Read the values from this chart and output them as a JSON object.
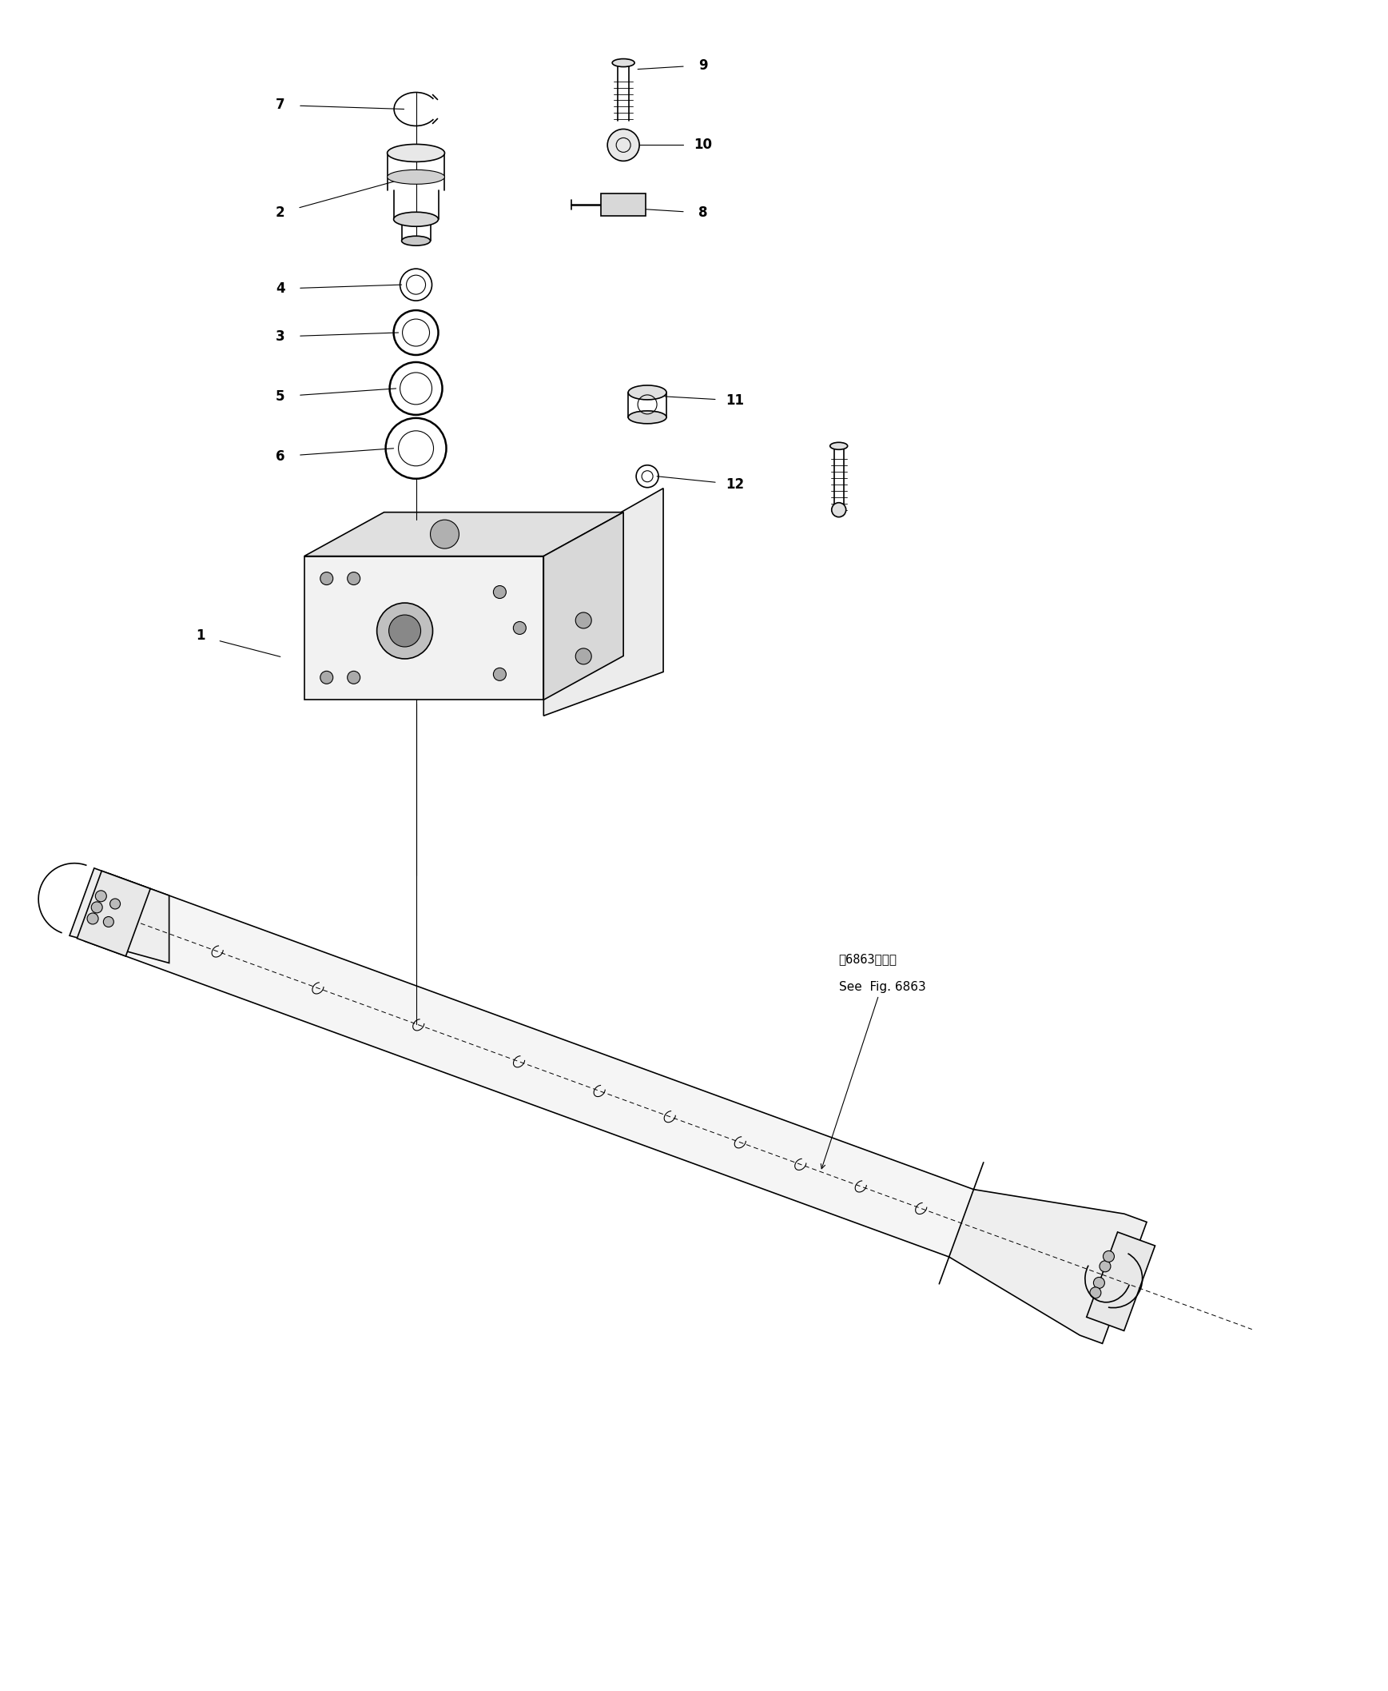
{
  "bg_color": "#ffffff",
  "line_color": "#000000",
  "fig_width": 17.37,
  "fig_height": 21.15,
  "annotation_text_jp": "第6863図参照",
  "annotation_text_en": "See  Fig. 6863"
}
